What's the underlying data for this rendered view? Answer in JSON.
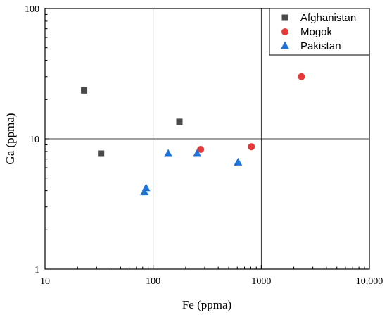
{
  "chart_data": {
    "type": "scatter",
    "title": "",
    "xlabel": "Fe (ppma)",
    "ylabel": "Ga (ppma)",
    "x_scale": "log",
    "y_scale": "log",
    "xlim": [
      10,
      10000
    ],
    "ylim": [
      1,
      100
    ],
    "x_ticks": [
      10,
      100,
      1000,
      10000
    ],
    "x_tick_labels": [
      "10",
      "100",
      "1000",
      "10,000"
    ],
    "y_ticks": [
      1,
      10,
      100
    ],
    "y_tick_labels": [
      "1",
      "10",
      "100"
    ],
    "grid": "major lines at x=100, x=1000 and y=10",
    "legend_position": "top-right",
    "series": [
      {
        "name": "Afghanistan",
        "marker": "square",
        "color": "#4a4a4a",
        "points": [
          [
            23,
            23.5
          ],
          [
            33,
            7.7
          ],
          [
            175,
            13.5
          ]
        ]
      },
      {
        "name": "Mogok",
        "marker": "circle",
        "color": "#e8393a",
        "points": [
          [
            275,
            8.3
          ],
          [
            810,
            8.7
          ],
          [
            2350,
            30
          ]
        ]
      },
      {
        "name": "Pakistan",
        "marker": "triangle",
        "color": "#1f73d6",
        "points": [
          [
            83,
            3.9
          ],
          [
            86,
            4.2
          ],
          [
            138,
            7.7
          ],
          [
            255,
            7.7
          ],
          [
            610,
            6.6
          ]
        ]
      }
    ]
  }
}
